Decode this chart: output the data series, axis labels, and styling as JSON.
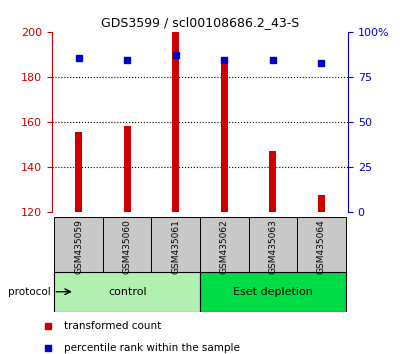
{
  "title": "GDS3599 / scl00108686.2_43-S",
  "samples": [
    "GSM435059",
    "GSM435060",
    "GSM435061",
    "GSM435062",
    "GSM435063",
    "GSM435064"
  ],
  "transformed_count": [
    155.5,
    158.5,
    200.0,
    186.5,
    147.0,
    127.5
  ],
  "percentile_rank": [
    85.5,
    84.5,
    87.0,
    84.5,
    84.5,
    82.5
  ],
  "bar_color": "#cc0000",
  "point_color": "#0000cc",
  "ylim_left": [
    120,
    200
  ],
  "ylim_right": [
    0,
    100
  ],
  "yticks_left": [
    120,
    140,
    160,
    180,
    200
  ],
  "yticks_right": [
    0,
    25,
    50,
    75,
    100
  ],
  "ytick_labels_right": [
    "0",
    "25",
    "50",
    "75",
    "100%"
  ],
  "groups": [
    {
      "label": "control",
      "indices": [
        0,
        1,
        2
      ],
      "color": "#b2f0b2"
    },
    {
      "label": "Eset depletion",
      "indices": [
        3,
        4,
        5
      ],
      "color": "#00dd44"
    }
  ],
  "protocol_label": "protocol",
  "legend_items": [
    {
      "color": "#cc0000",
      "label": "transformed count"
    },
    {
      "color": "#0000cc",
      "label": "percentile rank within the sample"
    }
  ],
  "grid_color": "black",
  "sample_bg_color": "#c8c8c8",
  "bar_bottom": 120,
  "x_positions": [
    0,
    1,
    2,
    3,
    4,
    5
  ],
  "bar_width": 0.15,
  "point_size": 5,
  "gridlines_at": [
    140,
    160,
    180
  ]
}
